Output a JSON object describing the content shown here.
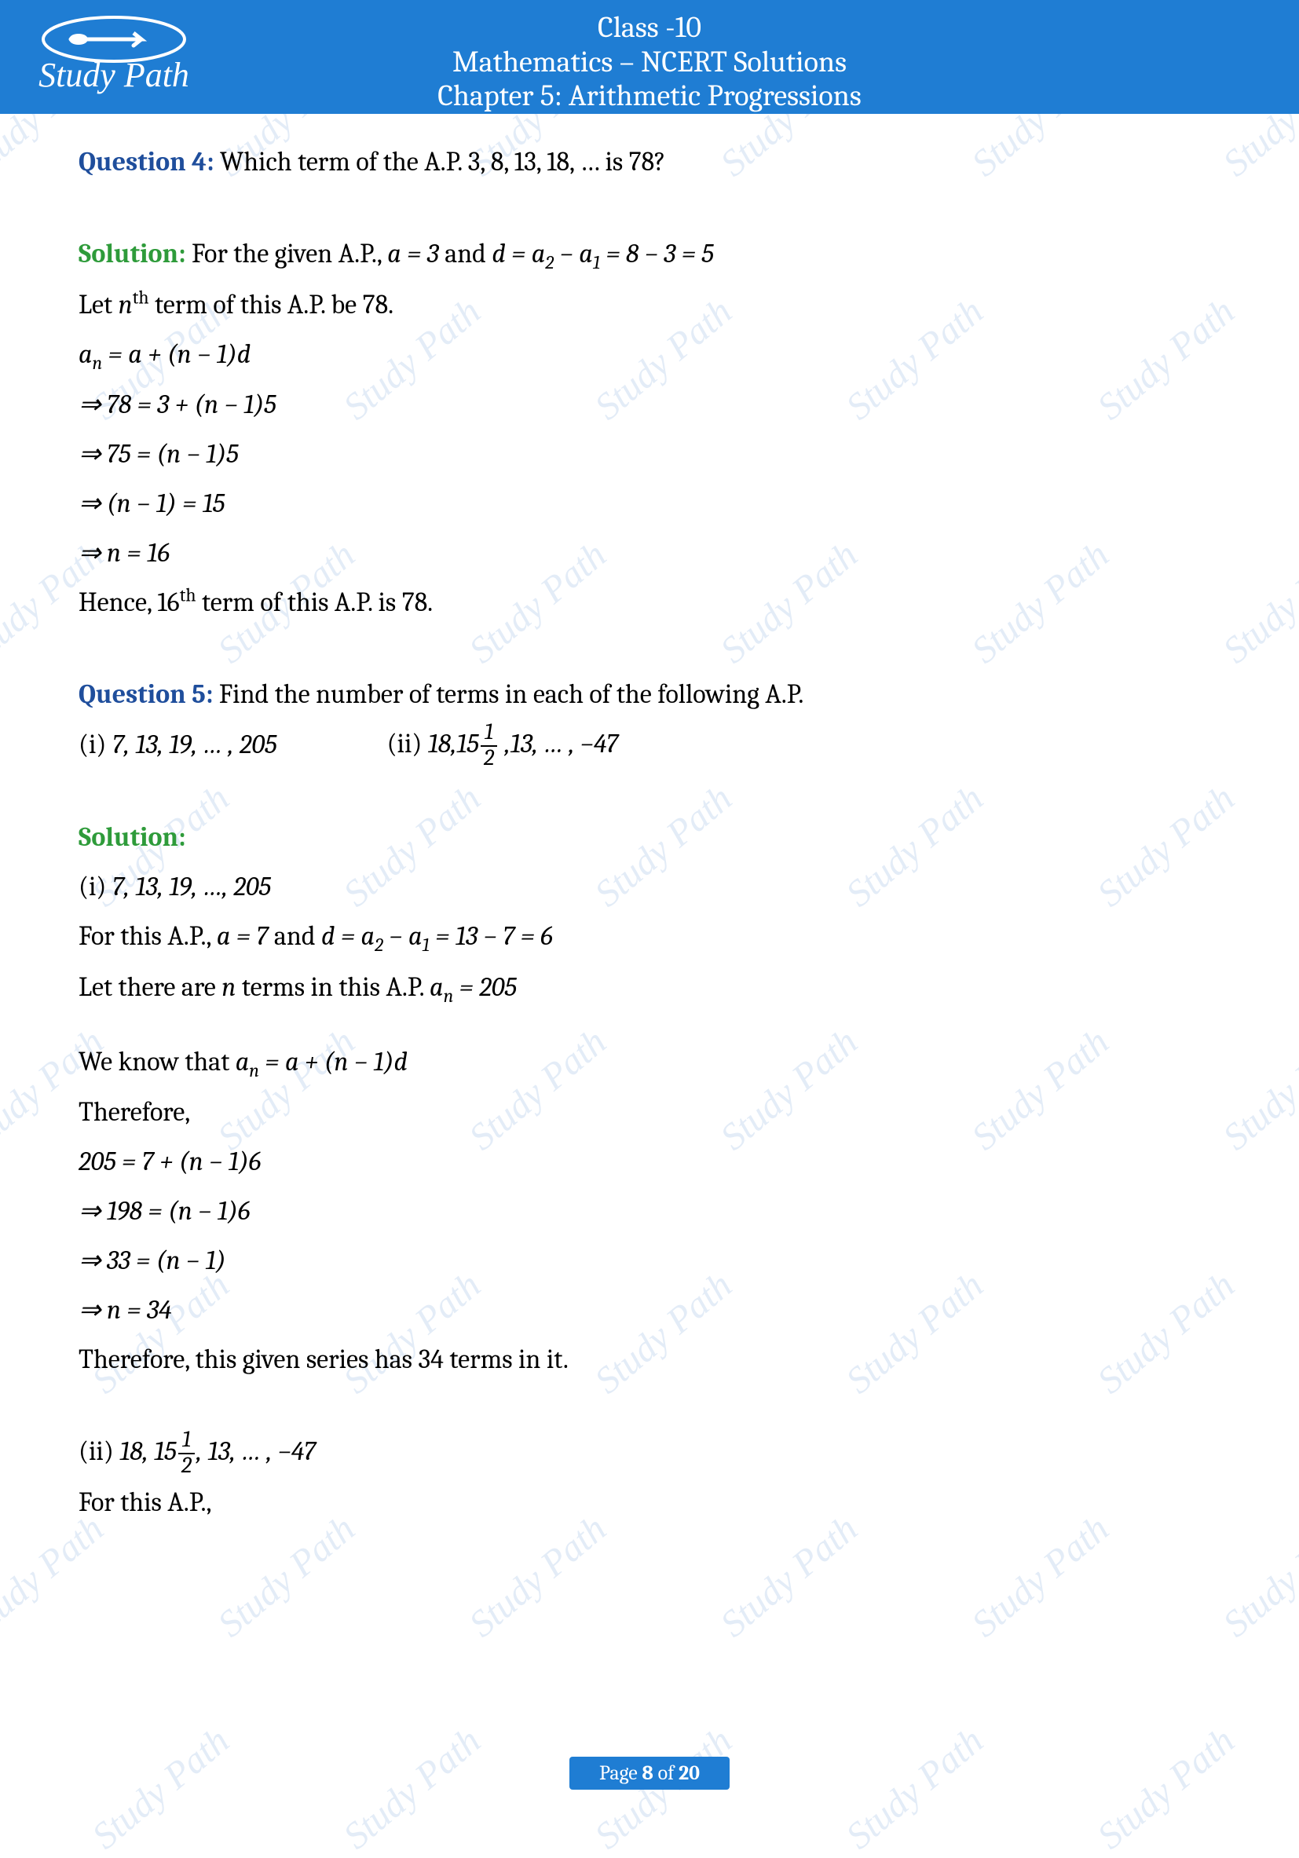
{
  "watermark_text": "Study Path",
  "header": {
    "line1": "Class -10",
    "line2": "Mathematics – NCERT Solutions",
    "line3": "Chapter 5: Arithmetic Progressions",
    "logo_text": "Study Path"
  },
  "colors": {
    "banner_bg": "#1f7dd3",
    "banner_text": "#ffffff",
    "question_label": "#1f4e9c",
    "solution_label": "#2e9b3a",
    "body_text": "#000000",
    "watermark": "rgba(70,130,200,0.15)"
  },
  "q4": {
    "label": "Question 4:",
    "text": " Which term of the A.P. 3, 8, 13, 18, … is 78?",
    "sol_label": "Solution:",
    "sol_line1_a": " For the given A.P., ",
    "sol_line1_b": "a = 3",
    "sol_line1_c": " and ",
    "sol_line1_d": "d = a",
    "sol_line1_sub2": "2",
    "sol_line1_e": " − a",
    "sol_line1_sub1": "1",
    "sol_line1_f": " = 8 − 3 = 5",
    "line2_a": "Let ",
    "line2_b": "n",
    "line2_sup": "th",
    "line2_c": " term of this A.P. be 78.",
    "eq1_a": "a",
    "eq1_subn": "n",
    "eq1_b": " = a + (n − 1)d",
    "eq2": "⇒ 78 = 3 + (n − 1)5",
    "eq3": "⇒ 75 = (n − 1)5",
    "eq4": "⇒ (n − 1) = 15",
    "eq5": "⇒ n = 16",
    "concl_a": "Hence, 16",
    "concl_sup": "th",
    "concl_b": " term of this A.P. is 78."
  },
  "q5": {
    "label": "Question 5:",
    "text": " Find the number of terms in each of the following A.P.",
    "opt_i_label": "(i) ",
    "opt_i_text": "7, 13, 19, … , 205",
    "opt_ii_label": "(ii) ",
    "opt_ii_prefix": "18,15",
    "opt_ii_frac_num": "1",
    "opt_ii_frac_den": "2",
    "opt_ii_suffix": " ,13, … , −47",
    "sol_label": "Solution:",
    "i_label": "(i) ",
    "i_seq": "7, 13, 19, …, 205",
    "i_line1_a": "For this A.P., ",
    "i_line1_b": "a = 7",
    "i_line1_c": " and ",
    "i_line1_d": "d = a",
    "i_line1_sub2": "2",
    "i_line1_e": " − a",
    "i_line1_sub1": "1",
    "i_line1_f": " = 13 − 7 = 6",
    "i_line2_a": "Let there are ",
    "i_line2_b": "n",
    "i_line2_c": " terms in this A.P. ",
    "i_line2_d": "a",
    "i_line2_subn": "n",
    "i_line2_e": " = 205",
    "i_line3_a": "We know that ",
    "i_line3_b": "a",
    "i_line3_subn": "n",
    "i_line3_c": " = a + (n − 1)d",
    "i_therefore": "Therefore,",
    "i_eq1": "205 = 7 + (n − 1)6",
    "i_eq2": "⇒ 198 = (n − 1)6",
    "i_eq3": "⇒ 33 = (n − 1)",
    "i_eq4": "⇒ n = 34",
    "i_concl": "Therefore, this given series has 34 terms in it.",
    "ii_label": "(ii) ",
    "ii_prefix": "18, 15",
    "ii_frac_num": "1",
    "ii_frac_den": "2",
    "ii_suffix": ", 13, … , −47",
    "ii_line1": "For this A.P.,"
  },
  "footer": {
    "prefix": "Page ",
    "page": "8",
    "mid": " of ",
    "total": "20"
  }
}
